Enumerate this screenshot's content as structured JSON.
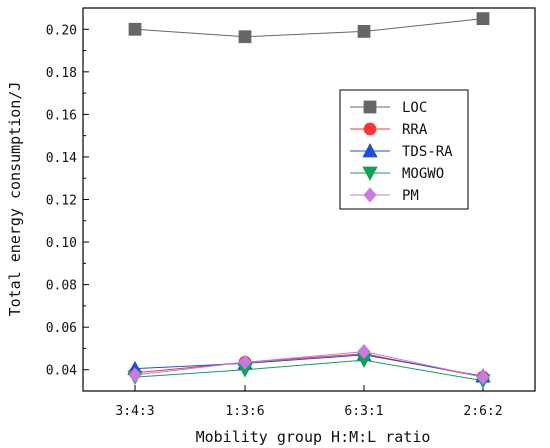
{
  "chart_data": {
    "type": "line",
    "xlabel": "Mobility group H:M:L ratio",
    "ylabel": "Total energy consumption/J",
    "categories": [
      "3:4:3",
      "1:3:6",
      "6:3:1",
      "2:6:2"
    ],
    "ylim": [
      0.03,
      0.21
    ],
    "yticks": [
      0.04,
      0.06,
      0.08,
      0.1,
      0.12,
      0.14,
      0.16,
      0.18,
      0.2
    ],
    "ytick_labels": [
      "0.04",
      "0.06",
      "0.08",
      "0.10",
      "0.12",
      "0.14",
      "0.16",
      "0.18",
      "0.20"
    ],
    "grid": false,
    "legend_position": "right",
    "series": [
      {
        "name": "LOC",
        "values": [
          0.2,
          0.1965,
          0.199,
          0.205
        ],
        "color": "#666666",
        "marker": "square"
      },
      {
        "name": "RRA",
        "values": [
          0.0385,
          0.0435,
          0.0475,
          0.0365
        ],
        "color": "#ff3333",
        "marker": "circle"
      },
      {
        "name": "TDS-RA",
        "values": [
          0.0405,
          0.043,
          0.047,
          0.037
        ],
        "color": "#1f4fd6",
        "marker": "triangle-up"
      },
      {
        "name": "MOGWO",
        "values": [
          0.0365,
          0.04,
          0.0445,
          0.0348
        ],
        "color": "#11a05a",
        "marker": "triangle-down"
      },
      {
        "name": "PM",
        "values": [
          0.0375,
          0.0435,
          0.0485,
          0.0365
        ],
        "color": "#c77ae0",
        "marker": "diamond"
      }
    ]
  }
}
